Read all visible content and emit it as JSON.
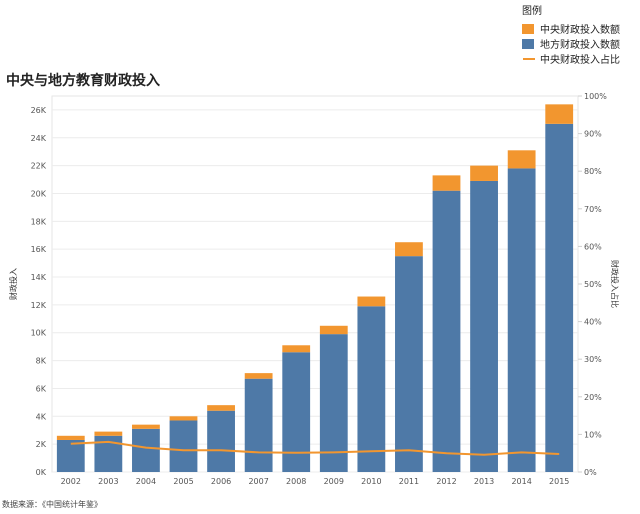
{
  "title": "中央与地方教育财政投入",
  "legend": {
    "title": "图例",
    "items": [
      {
        "label": "中央财政投入数额",
        "kind": "bar",
        "color": "#f2962f"
      },
      {
        "label": "地方财政投入数额",
        "kind": "bar",
        "color": "#4e79a7"
      },
      {
        "label": "中央财政投入占比",
        "kind": "line",
        "color": "#f2962f"
      }
    ]
  },
  "source": "数据来源：《中国统计年鉴》",
  "chart_data": {
    "type": "bar",
    "stacked": true,
    "categories": [
      "2002",
      "2003",
      "2004",
      "2005",
      "2006",
      "2007",
      "2008",
      "2009",
      "2010",
      "2011",
      "2012",
      "2013",
      "2014",
      "2015"
    ],
    "series": [
      {
        "name": "地方财政投入数额",
        "axis": "left",
        "color": "#4e79a7",
        "values": [
          2300,
          2600,
          3100,
          3700,
          4400,
          6700,
          8600,
          9900,
          11900,
          15500,
          20200,
          20900,
          21800,
          25000
        ]
      },
      {
        "name": "中央财政投入数额",
        "axis": "left",
        "color": "#f2962f",
        "values": [
          300,
          300,
          300,
          300,
          400,
          400,
          500,
          600,
          700,
          1000,
          1100,
          1100,
          1300,
          1400
        ]
      },
      {
        "name": "中央财政投入占比",
        "type": "line",
        "axis": "right",
        "color": "#f2962f",
        "values": [
          7.5,
          8.0,
          6.5,
          5.8,
          5.8,
          5.2,
          5.1,
          5.2,
          5.5,
          5.8,
          5.0,
          4.6,
          5.2,
          4.8
        ]
      }
    ],
    "ylabel": "财政投入",
    "y2label": "财政投入占比",
    "ylim": [
      0,
      27000
    ],
    "yticks": [
      "0K",
      "2K",
      "4K",
      "6K",
      "8K",
      "10K",
      "12K",
      "14K",
      "16K",
      "18K",
      "20K",
      "22K",
      "24K",
      "26K"
    ],
    "y2lim": [
      0,
      100
    ],
    "y2ticks": [
      "0%",
      "10%",
      "20%",
      "30%",
      "40%",
      "50%",
      "60%",
      "70%",
      "80%",
      "90%",
      "100%"
    ],
    "grid": true,
    "legend_position": "top-right"
  }
}
